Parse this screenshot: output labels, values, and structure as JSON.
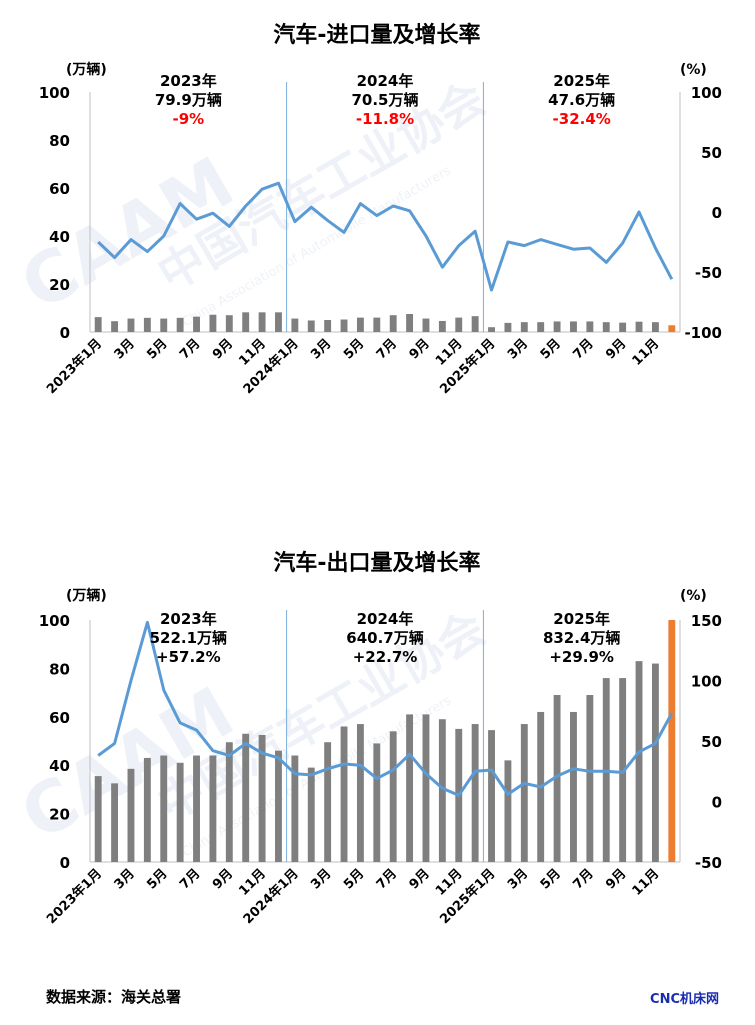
{
  "source_label": "数据来源：海关总署",
  "brand": "CNC机床网",
  "watermark": {
    "text_cn": "中国汽车工业协会",
    "text_en": "China Association of Automobile Manufacturers",
    "logo": "CAAM"
  },
  "chart_data": [
    {
      "id": "import",
      "type": "bar+line",
      "title": "汽车-进口量及增长率",
      "left_unit": "(万辆)",
      "right_unit": "(%)",
      "ylim_left": [
        0,
        100
      ],
      "yticks_left": [
        0,
        20,
        40,
        60,
        80,
        100
      ],
      "ylim_right": [
        -100,
        100
      ],
      "yticks_right": [
        -100,
        -50,
        0,
        50,
        100
      ],
      "x_tick_labels": [
        "2023年1月",
        "3月",
        "5月",
        "7月",
        "9月",
        "11月",
        "2024年1月",
        "3月",
        "5月",
        "7月",
        "9月",
        "11月",
        "2025年1月",
        "3月",
        "5月",
        "7月",
        "9月",
        "11月"
      ],
      "bar_series": {
        "name": "进口量(万辆)",
        "values": [
          6.2,
          4.5,
          5.6,
          5.9,
          5.6,
          5.9,
          6.4,
          7.2,
          7.0,
          8.2,
          8.2,
          8.2,
          5.6,
          4.8,
          5.0,
          5.2,
          6.0,
          6.0,
          7.0,
          7.5,
          5.6,
          4.6,
          6.0,
          6.6,
          2.0,
          3.8,
          4.1,
          4.1,
          4.4,
          4.4,
          4.4,
          4.1,
          3.9,
          4.3,
          4.1,
          2.8
        ],
        "highlight_last_color": "#ed7d31"
      },
      "line_series": {
        "name": "增长率(%)",
        "values": [
          -25,
          -38,
          -23,
          -33,
          -20,
          7,
          -6,
          -1,
          -12,
          5,
          19,
          24,
          -8,
          4,
          -7,
          -17,
          7,
          -3,
          5,
          1,
          -20,
          -46,
          -28,
          -16,
          -65,
          -25,
          -28,
          -23,
          -27,
          -31,
          -30,
          -42,
          -26,
          0,
          -30,
          -56
        ]
      },
      "annotations": [
        {
          "year": "2023年",
          "volume": "79.9万辆",
          "growth": "-9%"
        },
        {
          "year": "2024年",
          "volume": "70.5万辆",
          "growth": "-11.8%"
        },
        {
          "year": "2025年",
          "volume": "47.6万辆",
          "growth": "-32.4%"
        }
      ]
    },
    {
      "id": "export",
      "type": "bar+line",
      "title": "汽车-出口量及增长率",
      "left_unit": "(万辆)",
      "right_unit": "(%)",
      "ylim_left": [
        0,
        100
      ],
      "yticks_left": [
        0,
        20,
        40,
        60,
        80,
        100
      ],
      "ylim_right": [
        -50,
        150
      ],
      "yticks_right": [
        -50,
        0,
        50,
        100,
        150
      ],
      "x_tick_labels": [
        "2023年1月",
        "3月",
        "5月",
        "7月",
        "9月",
        "11月",
        "2024年1月",
        "3月",
        "5月",
        "7月",
        "9月",
        "11月",
        "2025年1月",
        "3月",
        "5月",
        "7月",
        "9月",
        "11月"
      ],
      "bar_series": {
        "name": "出口量(万辆)",
        "values": [
          35.5,
          32.5,
          38.5,
          43,
          44,
          41,
          44,
          44,
          49.5,
          53,
          52.5,
          46,
          44,
          39,
          49.5,
          56,
          57,
          49,
          54,
          61,
          61,
          59,
          55,
          57,
          54.5,
          42,
          57,
          62,
          69,
          62,
          69,
          76,
          76,
          83,
          82,
          100
        ],
        "highlight_last_color": "#ed7d31"
      },
      "line_series": {
        "name": "增长率(%)",
        "values": [
          38,
          48,
          100,
          148,
          92,
          65,
          59,
          42,
          38,
          48,
          40,
          36,
          23,
          22,
          27,
          31,
          30,
          19,
          26,
          39,
          23,
          11,
          5,
          25,
          26,
          6,
          15,
          12,
          21,
          27,
          25,
          25,
          24,
          41,
          48,
          73
        ]
      },
      "annotations": [
        {
          "year": "2023年",
          "volume": "522.1万辆",
          "growth": "+57.2%"
        },
        {
          "year": "2024年",
          "volume": "640.7万辆",
          "growth": "+22.7%"
        },
        {
          "year": "2025年",
          "volume": "832.4万辆",
          "growth": "+29.9%"
        }
      ]
    }
  ]
}
